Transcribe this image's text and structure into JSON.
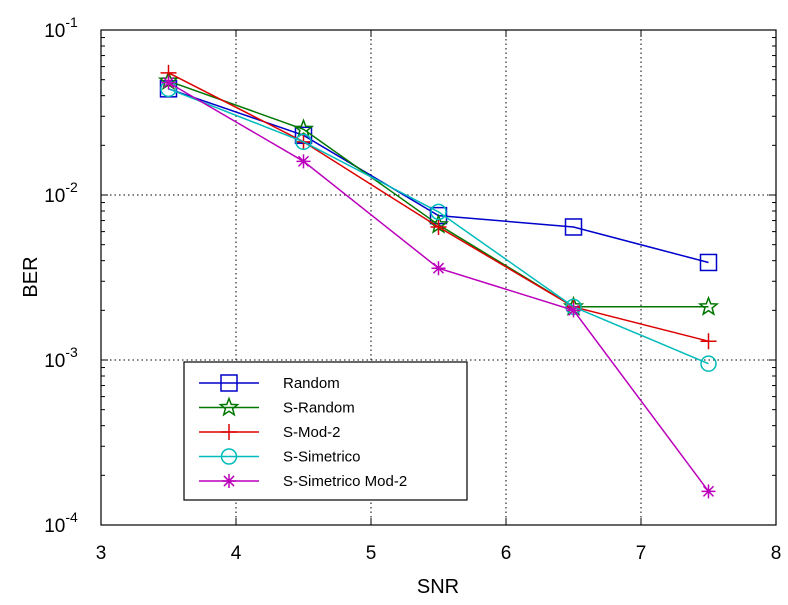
{
  "chart_data": {
    "type": "line",
    "title": "",
    "xlabel": "SNR",
    "ylabel": "BER",
    "xlim": [
      3,
      8
    ],
    "ylim": [
      0.0001,
      0.1
    ],
    "yscale": "log",
    "grid": true,
    "legend_position": "bottom-left",
    "x_ticks": [
      "3",
      "4",
      "5",
      "6",
      "7",
      "8"
    ],
    "y_ticks": [
      {
        "base": "10",
        "exp": "-4"
      },
      {
        "base": "10",
        "exp": "-3"
      },
      {
        "base": "10",
        "exp": "-2"
      },
      {
        "base": "10",
        "exp": "-1"
      }
    ],
    "series": [
      {
        "name": "Random",
        "color": "#0000cc",
        "marker": "square",
        "x": [
          3.5,
          4.5,
          5.5,
          6.5,
          7.5
        ],
        "y": [
          0.044,
          0.023,
          0.0075,
          0.0064,
          0.0039
        ]
      },
      {
        "name": "S-Random",
        "color": "#007700",
        "marker": "star",
        "x": [
          3.5,
          4.5,
          5.5,
          6.5,
          7.5
        ],
        "y": [
          0.049,
          0.025,
          0.0066,
          0.0021,
          0.0021
        ]
      },
      {
        "name": "S-Mod-2",
        "color": "#dd0000",
        "marker": "plus",
        "x": [
          3.5,
          4.5,
          5.5,
          6.5,
          7.5
        ],
        "y": [
          0.055,
          0.021,
          0.0064,
          0.0021,
          0.0013
        ]
      },
      {
        "name": "S-Simetrico",
        "color": "#00bbbb",
        "marker": "circle",
        "x": [
          3.5,
          4.5,
          5.5,
          6.5,
          7.5
        ],
        "y": [
          0.044,
          0.021,
          0.0079,
          0.0021,
          0.00095
        ]
      },
      {
        "name": "S-Simetrico Mod-2",
        "color": "#bb00bb",
        "marker": "asterisk",
        "x": [
          3.5,
          4.5,
          5.5,
          6.5,
          7.5
        ],
        "y": [
          0.048,
          0.016,
          0.0036,
          0.002,
          0.00016
        ]
      }
    ]
  }
}
